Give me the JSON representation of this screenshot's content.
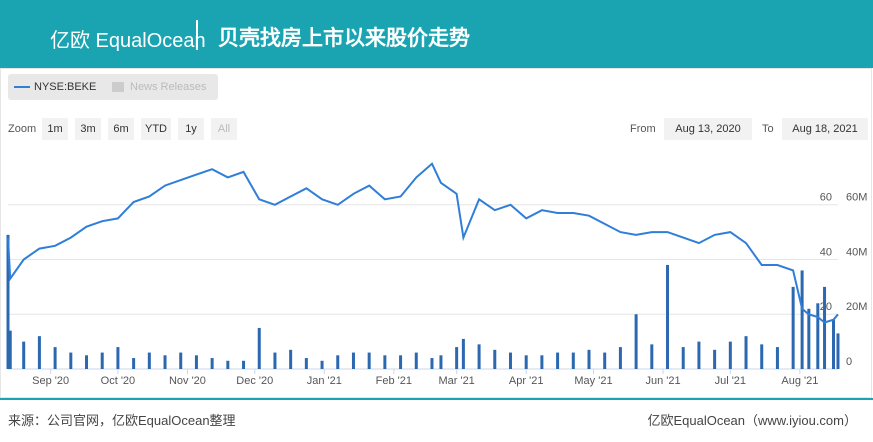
{
  "header": {
    "logo": "亿欧 EqualOcean",
    "title": "贝壳找房上市以来股价走势"
  },
  "footer": {
    "source": "来源：公司官网，亿欧EqualOcean整理",
    "site": "亿欧EqualOcean（www.iyiou.com）"
  },
  "ui": {
    "legend_disabled": "News Releases",
    "zoom_label": "Zoom",
    "zoom_buttons": [
      "1m",
      "3m",
      "6m",
      "YTD",
      "1y",
      "All"
    ],
    "from_label": "From",
    "from": "Aug 13, 2020",
    "to_label": "To",
    "to": "Aug 18, 2021"
  },
  "chart_data": {
    "type": "line",
    "x": [
      "2020-08-13",
      "2020-08-14",
      "2020-08-20",
      "2020-08-27",
      "2020-09-03",
      "2020-09-10",
      "2020-09-17",
      "2020-09-24",
      "2020-10-01",
      "2020-10-08",
      "2020-10-15",
      "2020-10-22",
      "2020-10-29",
      "2020-11-05",
      "2020-11-12",
      "2020-11-19",
      "2020-11-26",
      "2020-12-03",
      "2020-12-10",
      "2020-12-17",
      "2020-12-24",
      "2020-12-31",
      "2021-01-07",
      "2021-01-14",
      "2021-01-21",
      "2021-01-28",
      "2021-02-04",
      "2021-02-11",
      "2021-02-18",
      "2021-02-22",
      "2021-03-01",
      "2021-03-04",
      "2021-03-11",
      "2021-03-18",
      "2021-03-25",
      "2021-04-01",
      "2021-04-08",
      "2021-04-15",
      "2021-04-22",
      "2021-04-29",
      "2021-05-06",
      "2021-05-13",
      "2021-05-20",
      "2021-05-27",
      "2021-06-03",
      "2021-06-10",
      "2021-06-17",
      "2021-06-24",
      "2021-07-01",
      "2021-07-08",
      "2021-07-15",
      "2021-07-22",
      "2021-07-29",
      "2021-08-02",
      "2021-08-05",
      "2021-08-09",
      "2021-08-12",
      "2021-08-16",
      "2021-08-18"
    ],
    "xlim": [
      "2020-08-13",
      "2021-08-18"
    ],
    "xticks": [
      {
        "value": "2020-09-01",
        "label": "Sep '20"
      },
      {
        "value": "2020-10-01",
        "label": "Oct '20"
      },
      {
        "value": "2020-11-01",
        "label": "Nov '20"
      },
      {
        "value": "2020-12-01",
        "label": "Dec '20"
      },
      {
        "value": "2021-01-01",
        "label": "Jan '21"
      },
      {
        "value": "2021-02-01",
        "label": "Feb '21"
      },
      {
        "value": "2021-03-01",
        "label": "Mar '21"
      },
      {
        "value": "2021-04-01",
        "label": "Apr '21"
      },
      {
        "value": "2021-05-01",
        "label": "May '21"
      },
      {
        "value": "2021-06-01",
        "label": "Jun '21"
      },
      {
        "value": "2021-07-01",
        "label": "Jul '21"
      },
      {
        "value": "2021-08-01",
        "label": "Aug '21"
      }
    ],
    "ylim": [
      0,
      80
    ],
    "yticks": [
      20,
      40,
      60
    ],
    "y2lim": [
      0,
      80
    ],
    "y2ticks": [
      0,
      {
        "value": 20,
        "label": "20M"
      },
      {
        "value": 40,
        "label": "40M"
      },
      {
        "value": 60,
        "label": "60M"
      }
    ],
    "grid": true,
    "series": [
      {
        "name": "NYSE:BEKE",
        "color": "#2f7ed8",
        "values": [
          48,
          33,
          40,
          44,
          45,
          48,
          52,
          54,
          55,
          61,
          63,
          67,
          69,
          71,
          73,
          70,
          72,
          62,
          60,
          63,
          66,
          62,
          60,
          64,
          67,
          62,
          63,
          70,
          75,
          68,
          64,
          48,
          62,
          58,
          60,
          55,
          58,
          57,
          57,
          56,
          53,
          50,
          49,
          50,
          50,
          48,
          46,
          49,
          50,
          46,
          38,
          38,
          36,
          22,
          20,
          19,
          17,
          18,
          20
        ]
      },
      {
        "type": "bar",
        "axis": "y2",
        "color": "#2b68b0",
        "values": [
          49,
          14,
          10,
          12,
          8,
          6,
          5,
          6,
          8,
          4,
          6,
          5,
          6,
          5,
          4,
          3,
          3,
          15,
          6,
          7,
          4,
          3,
          5,
          6,
          6,
          5,
          5,
          6,
          4,
          5,
          8,
          11,
          9,
          7,
          6,
          5,
          5,
          6,
          6,
          7,
          6,
          8,
          20,
          9,
          38,
          8,
          10,
          7,
          10,
          12,
          9,
          8,
          30,
          36,
          22,
          24,
          30,
          18,
          13
        ]
      }
    ]
  }
}
